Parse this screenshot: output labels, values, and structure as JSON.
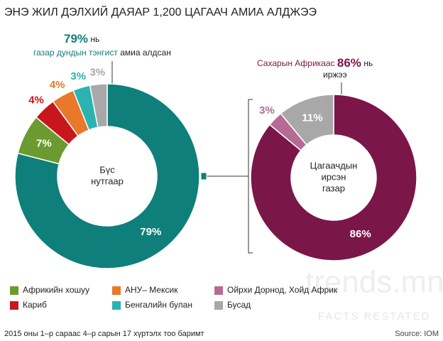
{
  "title": "ЭНЭ ЖИЛ ДЭЛХИЙ ДАЯАР 1,200 ЦАГААЧ АМИА АЛДЖЭЭ",
  "chart_data": [
    {
      "type": "donut",
      "center_label": [
        "Бүс",
        "нутгаар"
      ],
      "values": [
        79,
        7,
        4,
        4,
        3,
        3
      ],
      "value_labels": [
        "79%",
        "7%",
        "4%",
        "4%",
        "3%",
        "3%"
      ],
      "colors": [
        "#0e7f7b",
        "#6b9b30",
        "#c8161d",
        "#e9782a",
        "#2bb3b0",
        "#a8a8a8"
      ],
      "annotation": {
        "value": "79%",
        "suffix": "нь",
        "highlight": "газар дундын тэнгист",
        "text": "амиа алдсан"
      }
    },
    {
      "type": "donut",
      "center_label": [
        "Цагаачдын",
        "ирсэн",
        "газар"
      ],
      "values": [
        86,
        3,
        11
      ],
      "value_labels": [
        "86%",
        "3%",
        "11%"
      ],
      "colors": [
        "#7b1649",
        "#b56b93",
        "#a8a8a8"
      ],
      "annotation": {
        "highlight": "Сахарын Африкаас",
        "value": "86%",
        "suffix": "нь",
        "text": "иржээ"
      }
    }
  ],
  "legend": [
    {
      "name": "Африкийн хошуу",
      "color": "#6b9b30"
    },
    {
      "name": "Кариб",
      "color": "#c8161d"
    },
    {
      "name": "АНУ– Мексик",
      "color": "#e9782a"
    },
    {
      "name": "Бенгалийн булан",
      "color": "#2bb3b0"
    },
    {
      "name": "Ойрхи Дорнод, Хойд Африк",
      "color": "#b56b93"
    },
    {
      "name": "Бусад",
      "color": "#a8a8a8"
    }
  ],
  "watermark": {
    "brand": "trends.mn",
    "tagline": "FACTS RESTATED"
  },
  "footnote": "2015 оны 1–р сараас 4–р сарын 17 хүртэлх тоо баримт",
  "source": "Source: IOM"
}
